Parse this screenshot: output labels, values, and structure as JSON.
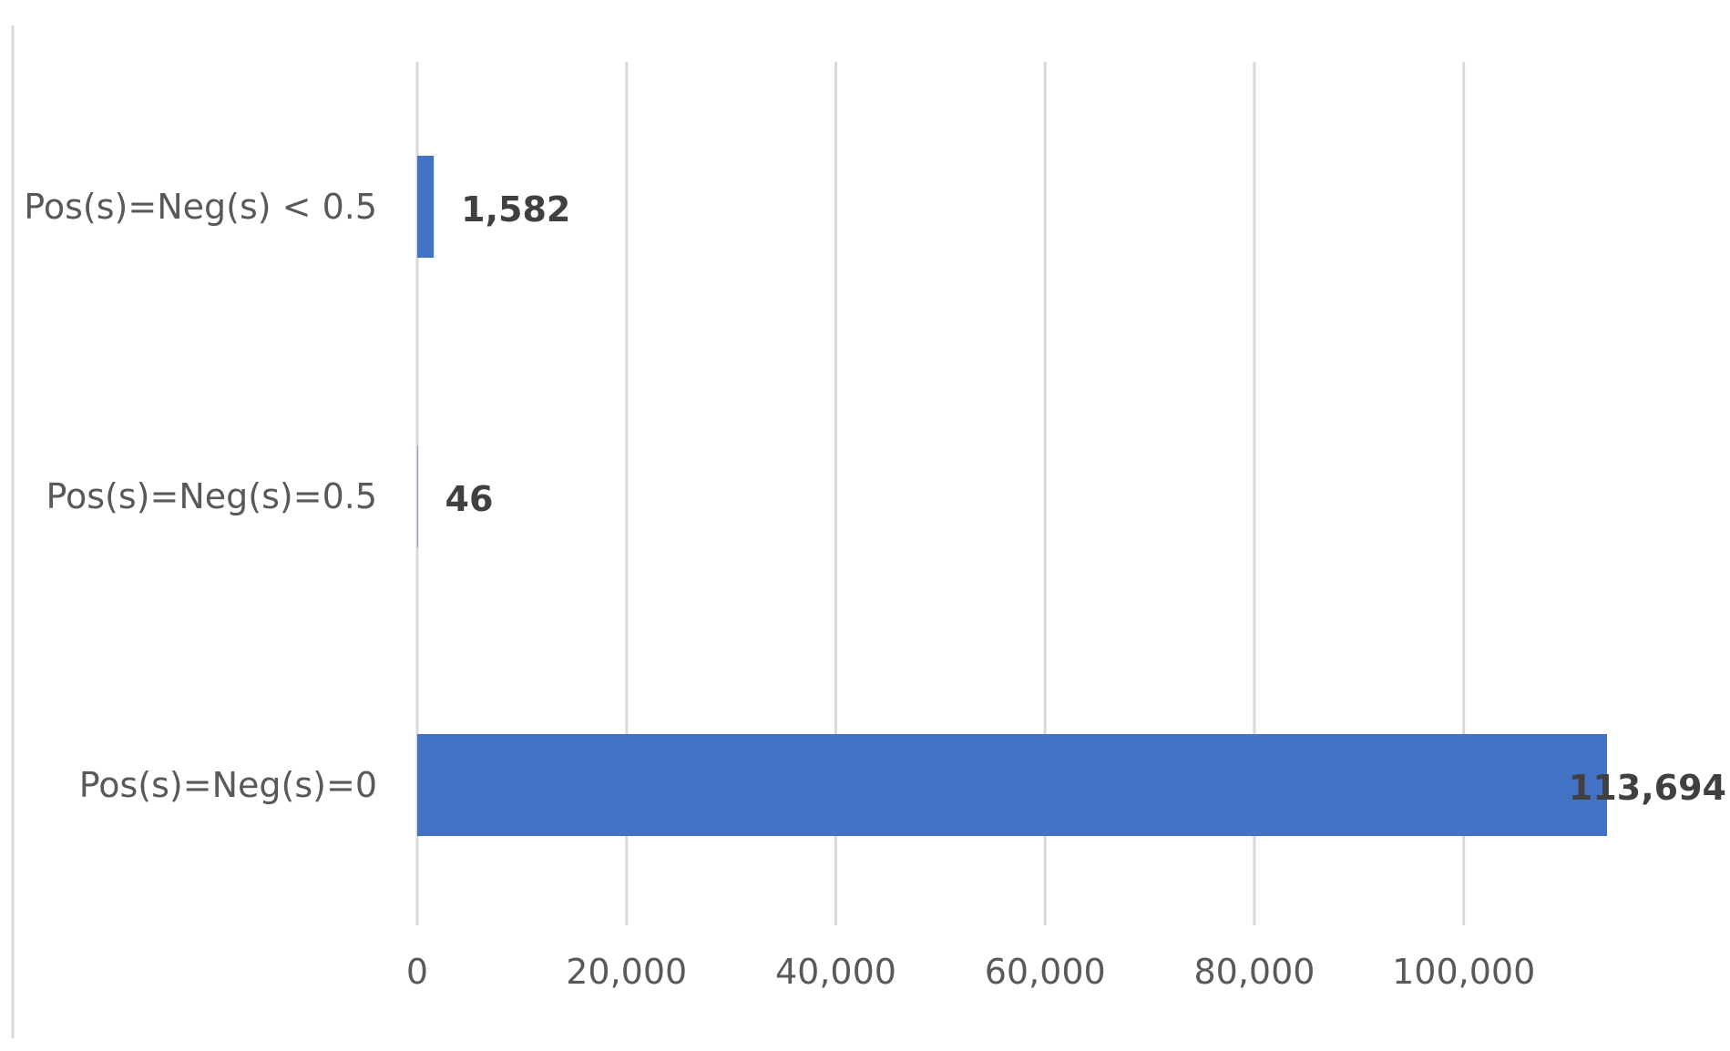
{
  "chart_data": {
    "type": "bar",
    "orientation": "horizontal",
    "title": "",
    "xlabel": "",
    "ylabel": "",
    "categories": [
      "Pos(s)=Neg(s) < 0.5",
      "Pos(s)=Neg(s)=0.5",
      "Pos(s)=Neg(s)=0"
    ],
    "values": [
      1582,
      46,
      113694
    ],
    "data_labels": [
      "1,582",
      "46",
      "113,694"
    ],
    "xlim": [
      0,
      113694
    ],
    "x_ticks": [
      0,
      20000,
      40000,
      60000,
      80000,
      100000
    ],
    "x_tick_labels": [
      "0",
      "20,000",
      "40,000",
      "60,000",
      "80,000",
      "100,000"
    ],
    "grid": true,
    "legend": "none",
    "bar_color": "#4472c4",
    "gridline_color": "#d9d9d9",
    "text_color": "#595959",
    "label_color": "#404040"
  }
}
